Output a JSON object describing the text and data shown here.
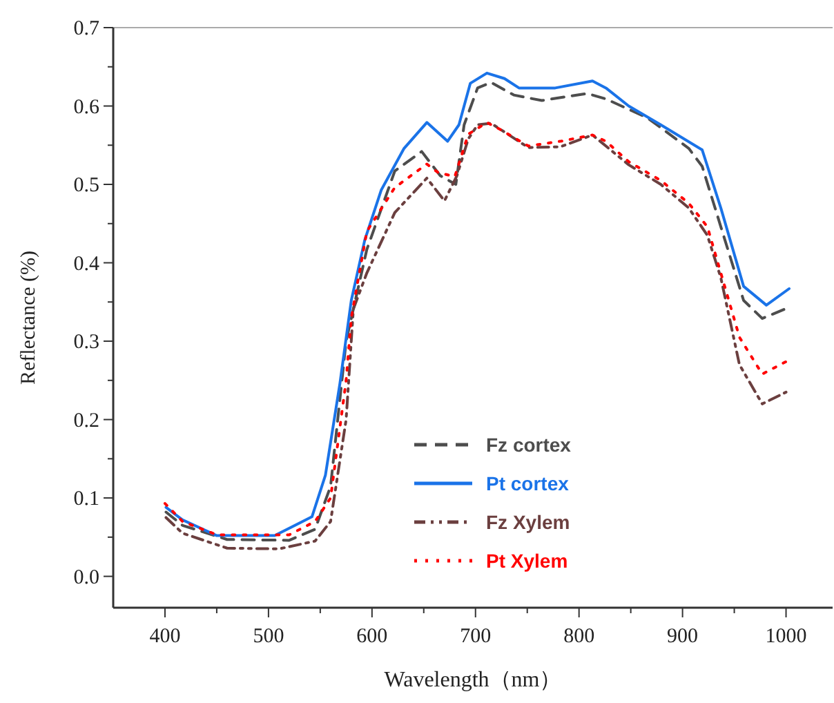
{
  "chart_data": {
    "type": "line",
    "xlabel": "Wavelength（nm）",
    "ylabel": "Reflectance (%)",
    "xlim": [
      350,
      1045
    ],
    "ylim": [
      -0.04,
      0.7
    ],
    "xticks": [
      400,
      {
        "value": 450,
        "label": null
      },
      500,
      {
        "value": 550,
        "label": null
      },
      600,
      {
        "value": 650,
        "label": null
      },
      700,
      {
        "value": 750,
        "label": null
      },
      800,
      {
        "value": 850,
        "label": null
      },
      900,
      {
        "value": 950,
        "label": null
      },
      1000
    ],
    "yticks": [
      {
        "value": 0,
        "label": "0.0"
      },
      {
        "value": 0.05,
        "label": null
      },
      {
        "value": 0.1,
        "label": "0.1"
      },
      {
        "value": 0.15,
        "label": null
      },
      {
        "value": 0.2,
        "label": "0.2"
      },
      {
        "value": 0.25,
        "label": null
      },
      {
        "value": 0.3,
        "label": "0.3"
      },
      {
        "value": 0.35,
        "label": null
      },
      {
        "value": 0.4,
        "label": "0.4"
      },
      {
        "value": 0.45,
        "label": null
      },
      {
        "value": 0.5,
        "label": "0.5"
      },
      {
        "value": 0.55,
        "label": null
      },
      {
        "value": 0.6,
        "label": "0.6"
      },
      {
        "value": 0.65,
        "label": null
      },
      {
        "value": 0.7,
        "label": "0.7"
      }
    ],
    "legend": "bottom",
    "series": [
      {
        "name": "Fz cortex",
        "color": "#4d4d4d",
        "line_style": "dashed",
        "x": [
          401,
          417,
          460,
          520,
          545,
          560,
          575,
          595,
          622,
          648,
          666,
          681,
          689,
          702,
          715,
          737,
          764,
          808,
          826,
          866,
          906,
          919,
          937,
          959,
          977,
          999
        ],
        "values": [
          0.082,
          0.065,
          0.047,
          0.046,
          0.06,
          0.115,
          0.3,
          0.417,
          0.517,
          0.542,
          0.511,
          0.5,
          0.576,
          0.623,
          0.63,
          0.614,
          0.607,
          0.616,
          0.609,
          0.585,
          0.546,
          0.523,
          0.446,
          0.352,
          0.329,
          0.341
        ]
      },
      {
        "name": "Pt cortex",
        "color": "#1a73e8",
        "line_style": "solid",
        "x": [
          401,
          417,
          450,
          506,
          542,
          555,
          569,
          580,
          593,
          609,
          631,
          653,
          673,
          684,
          695,
          711,
          728,
          742,
          777,
          813,
          826,
          848,
          879,
          919,
          937,
          959,
          981,
          1003
        ],
        "values": [
          0.088,
          0.072,
          0.052,
          0.052,
          0.076,
          0.129,
          0.246,
          0.352,
          0.429,
          0.493,
          0.546,
          0.579,
          0.555,
          0.576,
          0.629,
          0.642,
          0.635,
          0.623,
          0.623,
          0.632,
          0.623,
          0.6,
          0.576,
          0.544,
          0.47,
          0.37,
          0.346,
          0.367
        ]
      },
      {
        "name": "Fz Xylem",
        "color": "#6b3f3f",
        "line_style": "dashdot",
        "x": [
          401,
          417,
          460,
          510,
          545,
          560,
          575,
          582,
          595,
          622,
          653,
          670,
          682,
          693,
          702,
          715,
          751,
          782,
          813,
          848,
          879,
          906,
          924,
          937,
          955,
          977,
          1000
        ],
        "values": [
          0.075,
          0.055,
          0.036,
          0.035,
          0.045,
          0.07,
          0.2,
          0.341,
          0.387,
          0.464,
          0.508,
          0.479,
          0.511,
          0.558,
          0.576,
          0.578,
          0.547,
          0.548,
          0.563,
          0.525,
          0.5,
          0.47,
          0.435,
          0.381,
          0.27,
          0.22,
          0.235
        ]
      },
      {
        "name": "Pt Xylem",
        "color": "#ff0000",
        "line_style": "dotted",
        "x": [
          400,
          417,
          450,
          520,
          545,
          560,
          575,
          580,
          595,
          622,
          653,
          664,
          680,
          693,
          711,
          724,
          751,
          782,
          813,
          826,
          848,
          879,
          906,
          924,
          937,
          955,
          977,
          1003
        ],
        "values": [
          0.093,
          0.07,
          0.053,
          0.053,
          0.07,
          0.1,
          0.25,
          0.33,
          0.44,
          0.496,
          0.526,
          0.515,
          0.51,
          0.564,
          0.579,
          0.57,
          0.549,
          0.555,
          0.563,
          0.555,
          0.529,
          0.505,
          0.476,
          0.446,
          0.387,
          0.305,
          0.258,
          0.276
        ]
      }
    ]
  }
}
